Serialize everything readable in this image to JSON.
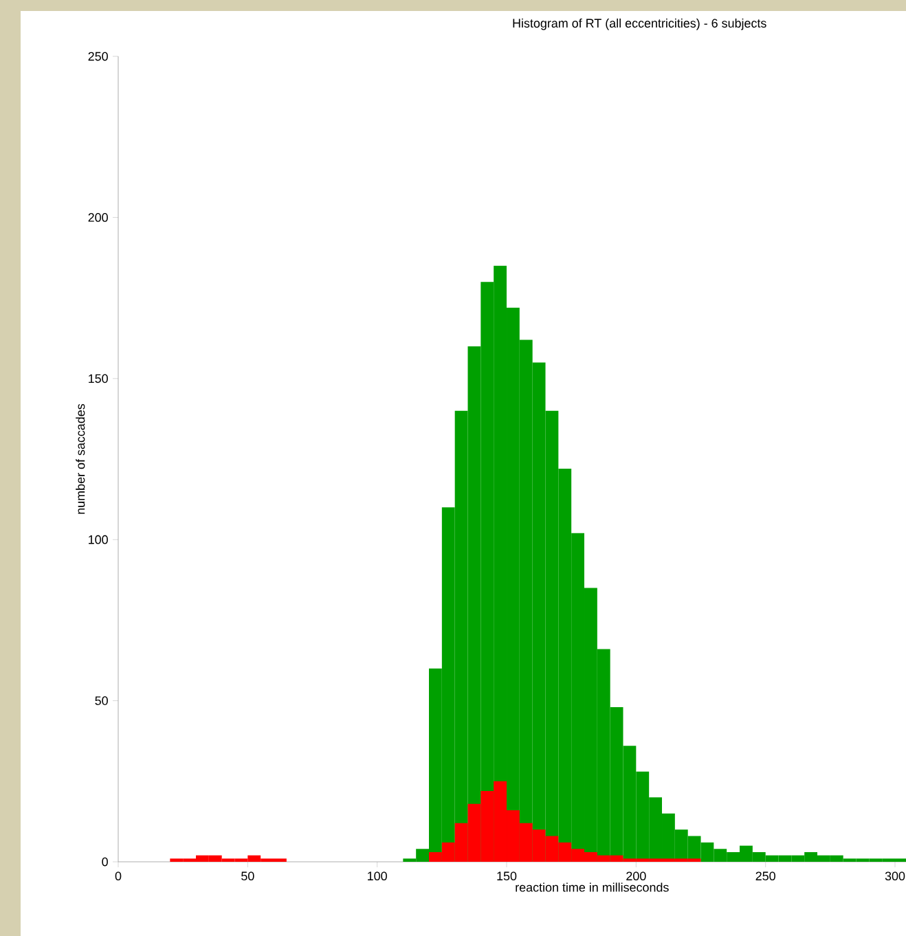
{
  "chart_data": {
    "type": "histogram",
    "title": "Histogram of RT (all eccentricities) - 6 subjects",
    "xlabel": "reaction time in milliseconds",
    "ylabel": "number of saccades",
    "bins": [
      0,
      5,
      10,
      15,
      20,
      25,
      30,
      35,
      40,
      45,
      50,
      55,
      60,
      65,
      70,
      75,
      80,
      85,
      90,
      95,
      100,
      105,
      110,
      115,
      120,
      125,
      130,
      135,
      140,
      145,
      150,
      155,
      160,
      165,
      170,
      175,
      180,
      185,
      190,
      195,
      200,
      205,
      210,
      215,
      220,
      225,
      230,
      235,
      240,
      245,
      250,
      255,
      260,
      265,
      270,
      275,
      280,
      285,
      290,
      295,
      300,
      305
    ],
    "series": [
      {
        "color": "#00a000",
        "values": [
          0,
          0,
          0,
          0,
          0,
          0,
          0,
          0,
          0,
          0,
          0,
          0,
          0,
          0,
          0,
          0,
          0,
          0,
          0,
          0,
          0,
          0,
          1,
          4,
          60,
          110,
          140,
          160,
          180,
          185,
          172,
          162,
          155,
          140,
          122,
          102,
          85,
          66,
          48,
          36,
          28,
          20,
          15,
          10,
          8,
          6,
          4,
          3,
          5,
          3,
          2,
          2,
          2,
          3,
          2,
          2,
          1,
          1,
          1,
          1,
          1
        ]
      },
      {
        "color": "#ff0000",
        "values": [
          0,
          0,
          0,
          0,
          1,
          1,
          2,
          2,
          1,
          1,
          2,
          1,
          1,
          0,
          0,
          0,
          0,
          0,
          0,
          0,
          0,
          0,
          0,
          0,
          3,
          6,
          12,
          18,
          22,
          25,
          16,
          12,
          10,
          8,
          6,
          4,
          3,
          2,
          2,
          1,
          1,
          1,
          1,
          1,
          1,
          0,
          0,
          0,
          0,
          0,
          0,
          0,
          0,
          0,
          0,
          0,
          0,
          0,
          0,
          0,
          0
        ]
      }
    ],
    "xlim": [
      0,
      305
    ],
    "ylim": [
      0,
      250
    ],
    "xticks": [
      0,
      50,
      100,
      150,
      200,
      250,
      300
    ],
    "yticks": [
      0,
      50,
      100,
      150,
      200,
      250
    ]
  }
}
